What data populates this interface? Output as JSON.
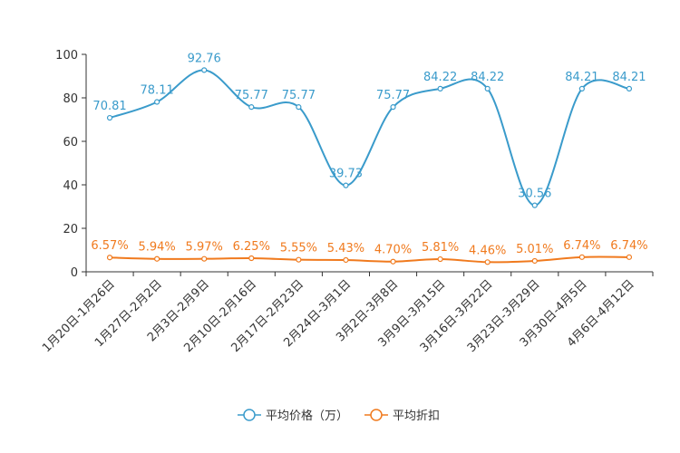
{
  "chart_data": {
    "type": "line",
    "title": "",
    "xlabel": "",
    "ylabel": "",
    "ylim": [
      0,
      100
    ],
    "yticks": [
      "0",
      "20",
      "40",
      "60",
      "80",
      "100"
    ],
    "legend_position": "bottom-center",
    "categories": [
      "1月20日-1月26日",
      "1月27日-2月2日",
      "2月3日-2月9日",
      "2月10日-2月16日",
      "2月17日-2月23日",
      "2月24日-3月1日",
      "3月2日-3月8日",
      "3月9日-3月15日",
      "3月16日-3月22日",
      "3月23日-3月29日",
      "3月30日-4月5日",
      "4月6日-4月12日"
    ],
    "series": [
      {
        "name": "平均价格（万）",
        "color": "#3a9bcb",
        "values": [
          70.81,
          78.11,
          92.76,
          75.77,
          75.77,
          39.73,
          75.77,
          84.22,
          84.22,
          30.56,
          84.21,
          84.21
        ],
        "labels": [
          "70.81",
          "78.11",
          "92.76",
          "75.77",
          "75.77",
          "39.73",
          "75.77",
          "84.22",
          "84.22",
          "30.56",
          "84.21",
          "84.21"
        ]
      },
      {
        "name": "平均折扣",
        "color": "#f07a1e",
        "values": [
          6.57,
          5.94,
          5.97,
          6.25,
          5.55,
          5.43,
          4.7,
          5.81,
          4.46,
          5.01,
          6.74,
          6.74
        ],
        "labels": [
          "6.57%",
          "5.94%",
          "5.97%",
          "6.25%",
          "5.55%",
          "5.43%",
          "4.70%",
          "5.81%",
          "4.46%",
          "5.01%",
          "6.74%",
          "6.74%"
        ]
      }
    ]
  }
}
